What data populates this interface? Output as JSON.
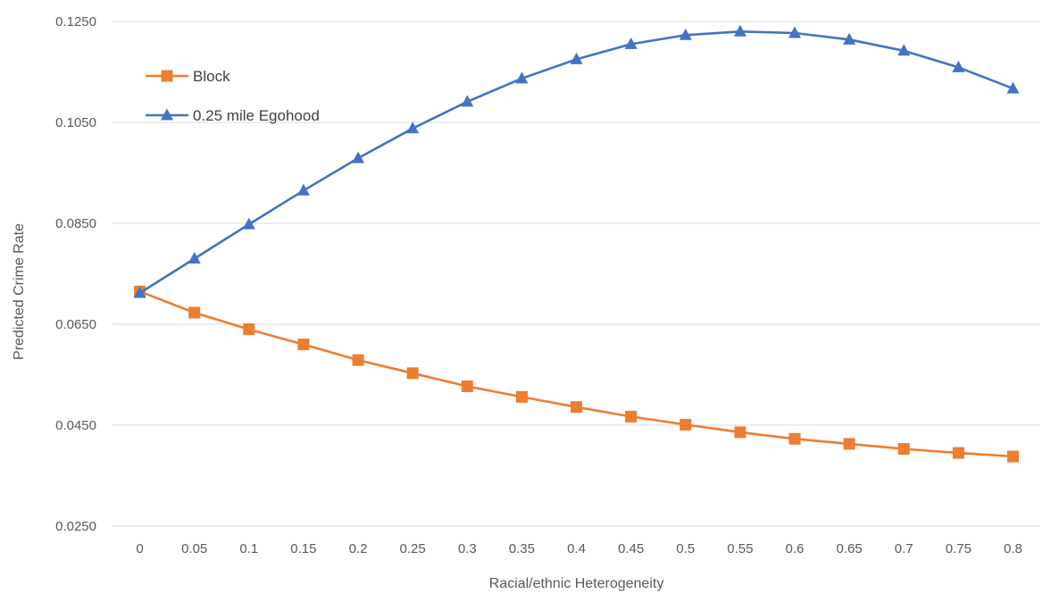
{
  "chart_data": {
    "type": "line",
    "title": "",
    "xlabel": "Racial/ethnic Heterogeneity",
    "ylabel": "Predicted Crime Rate",
    "categories": [
      "0",
      "0.05",
      "0.1",
      "0.15",
      "0.2",
      "0.25",
      "0.3",
      "0.35",
      "0.4",
      "0.45",
      "0.5",
      "0.55",
      "0.6",
      "0.65",
      "0.7",
      "0.75",
      "0.8"
    ],
    "y_ticks": [
      "0.0250",
      "0.0450",
      "0.0650",
      "0.0850",
      "0.1050",
      "0.1250"
    ],
    "ylim": [
      0.025,
      0.125
    ],
    "grid": true,
    "legend_position": "top-left",
    "series": [
      {
        "name": "Block",
        "color": "#ED7D31",
        "marker": "square",
        "values": [
          0.0715,
          0.0673,
          0.064,
          0.061,
          0.0579,
          0.0553,
          0.0527,
          0.0506,
          0.0486,
          0.0467,
          0.0451,
          0.0436,
          0.0423,
          0.0413,
          0.0403,
          0.0395,
          0.0388
        ]
      },
      {
        "name": "0.25 mile Egohood",
        "color": "#4472C4",
        "marker": "triangle",
        "values": [
          0.0712,
          0.078,
          0.0848,
          0.0915,
          0.0979,
          0.1038,
          0.1091,
          0.1137,
          0.1175,
          0.1205,
          0.1223,
          0.123,
          0.1227,
          0.1214,
          0.1192,
          0.1159,
          0.1117
        ]
      }
    ]
  }
}
